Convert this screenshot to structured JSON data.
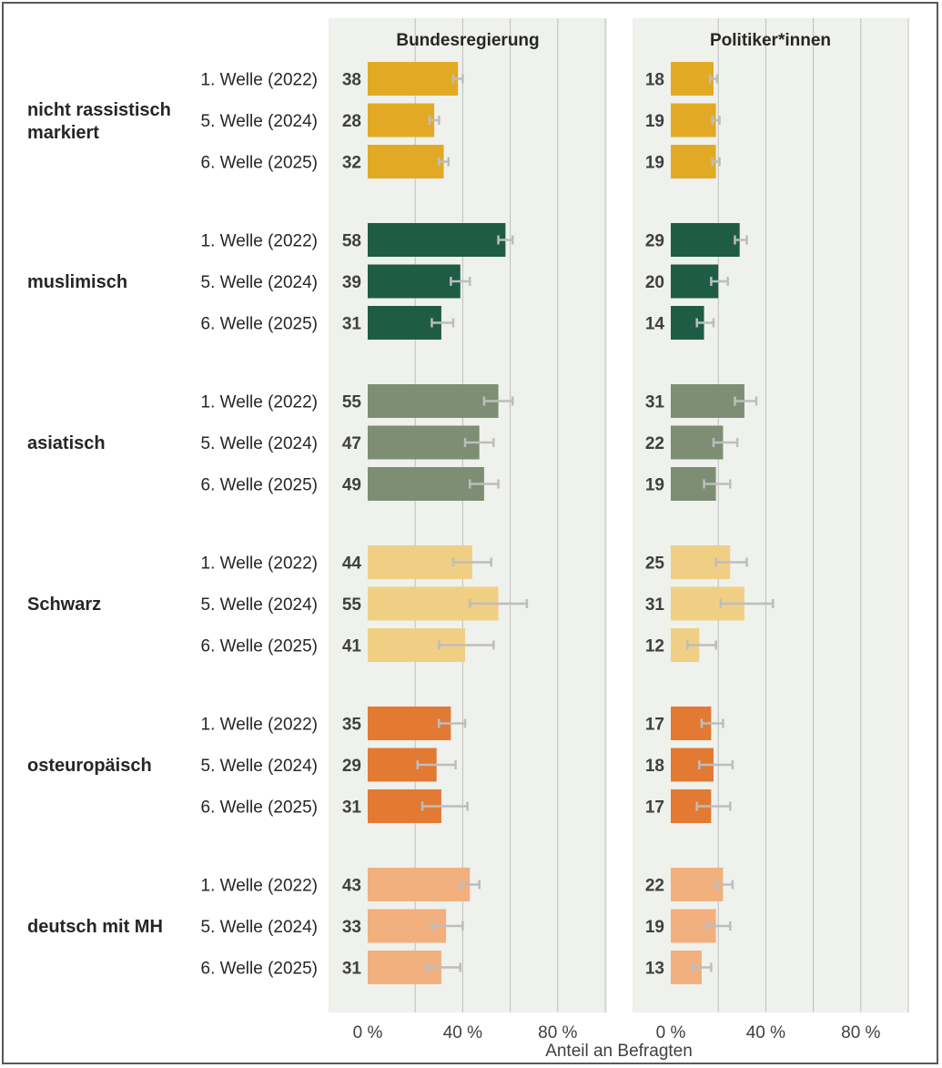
{
  "chart_data": {
    "type": "bar",
    "orientation": "horizontal",
    "panels": [
      "Bundesregierung",
      "Politiker*innen"
    ],
    "xlabel": "Anteil an Befragten",
    "xlim": [
      0,
      100
    ],
    "xticks": [
      0,
      40,
      80
    ],
    "xtick_labels": [
      "0 %",
      "40 %",
      "80 %"
    ],
    "gridlines_at": [
      0,
      20,
      40,
      60,
      80,
      100
    ],
    "grid": true,
    "error_bars": true,
    "waves": [
      "1. Welle (2022)",
      "5. Welle (2024)",
      "6. Welle (2025)"
    ],
    "groups": [
      {
        "name": "nicht rassistisch markiert",
        "name_lines": [
          "nicht rassistisch",
          "markiert"
        ],
        "color": "#E2AA24",
        "values": {
          "Bundesregierung": [
            38,
            28,
            32
          ],
          "Politiker*innen": [
            18,
            19,
            19
          ]
        },
        "error": {
          "Bundesregierung": [
            [
              36,
              40
            ],
            [
              26,
              30
            ],
            [
              30,
              34
            ]
          ],
          "Politiker*innen": [
            [
              16.5,
              19.5
            ],
            [
              17.5,
              20.5
            ],
            [
              17.5,
              20.5
            ]
          ]
        }
      },
      {
        "name": "muslimisch",
        "name_lines": [
          "muslimisch"
        ],
        "color": "#1E5C46",
        "values": {
          "Bundesregierung": [
            58,
            39,
            31
          ],
          "Politiker*innen": [
            29,
            20,
            14
          ]
        },
        "error": {
          "Bundesregierung": [
            [
              55,
              61
            ],
            [
              35,
              43
            ],
            [
              27,
              36
            ]
          ],
          "Politiker*innen": [
            [
              27,
              32
            ],
            [
              17,
              24
            ],
            [
              11,
              18
            ]
          ]
        }
      },
      {
        "name": "asiatisch",
        "name_lines": [
          "asiatisch"
        ],
        "color": "#7D8E74",
        "values": {
          "Bundesregierung": [
            55,
            47,
            49
          ],
          "Politiker*innen": [
            31,
            22,
            19
          ]
        },
        "error": {
          "Bundesregierung": [
            [
              49,
              61
            ],
            [
              41,
              53
            ],
            [
              43,
              55
            ]
          ],
          "Politiker*innen": [
            [
              27,
              36
            ],
            [
              18,
              28
            ],
            [
              14,
              25
            ]
          ]
        }
      },
      {
        "name": "Schwarz",
        "name_lines": [
          "Schwarz"
        ],
        "color": "#F0CF85",
        "values": {
          "Bundesregierung": [
            44,
            55,
            41
          ],
          "Politiker*innen": [
            25,
            31,
            12
          ]
        },
        "error": {
          "Bundesregierung": [
            [
              36,
              52
            ],
            [
              43,
              67
            ],
            [
              30,
              53
            ]
          ],
          "Politiker*innen": [
            [
              19,
              32
            ],
            [
              21,
              43
            ],
            [
              7,
              19
            ]
          ]
        }
      },
      {
        "name": "osteuropäisch",
        "name_lines": [
          "osteuropäisch"
        ],
        "color": "#E27A34",
        "values": {
          "Bundesregierung": [
            35,
            29,
            31
          ],
          "Politiker*innen": [
            17,
            18,
            17
          ]
        },
        "error": {
          "Bundesregierung": [
            [
              30,
              41
            ],
            [
              21,
              37
            ],
            [
              23,
              42
            ]
          ],
          "Politiker*innen": [
            [
              13,
              22
            ],
            [
              12,
              26
            ],
            [
              11,
              25
            ]
          ]
        }
      },
      {
        "name": "deutsch mit MH",
        "name_lines": [
          "deutsch mit MH"
        ],
        "color": "#F2B07E",
        "values": {
          "Bundesregierung": [
            43,
            33,
            31
          ],
          "Politiker*innen": [
            22,
            19,
            13
          ]
        },
        "error": {
          "Bundesregierung": [
            [
              39,
              47
            ],
            [
              27,
              40
            ],
            [
              25,
              39
            ]
          ],
          "Politiker*innen": [
            [
              19,
              26
            ],
            [
              15,
              25
            ],
            [
              9,
              17
            ]
          ]
        }
      }
    ]
  }
}
